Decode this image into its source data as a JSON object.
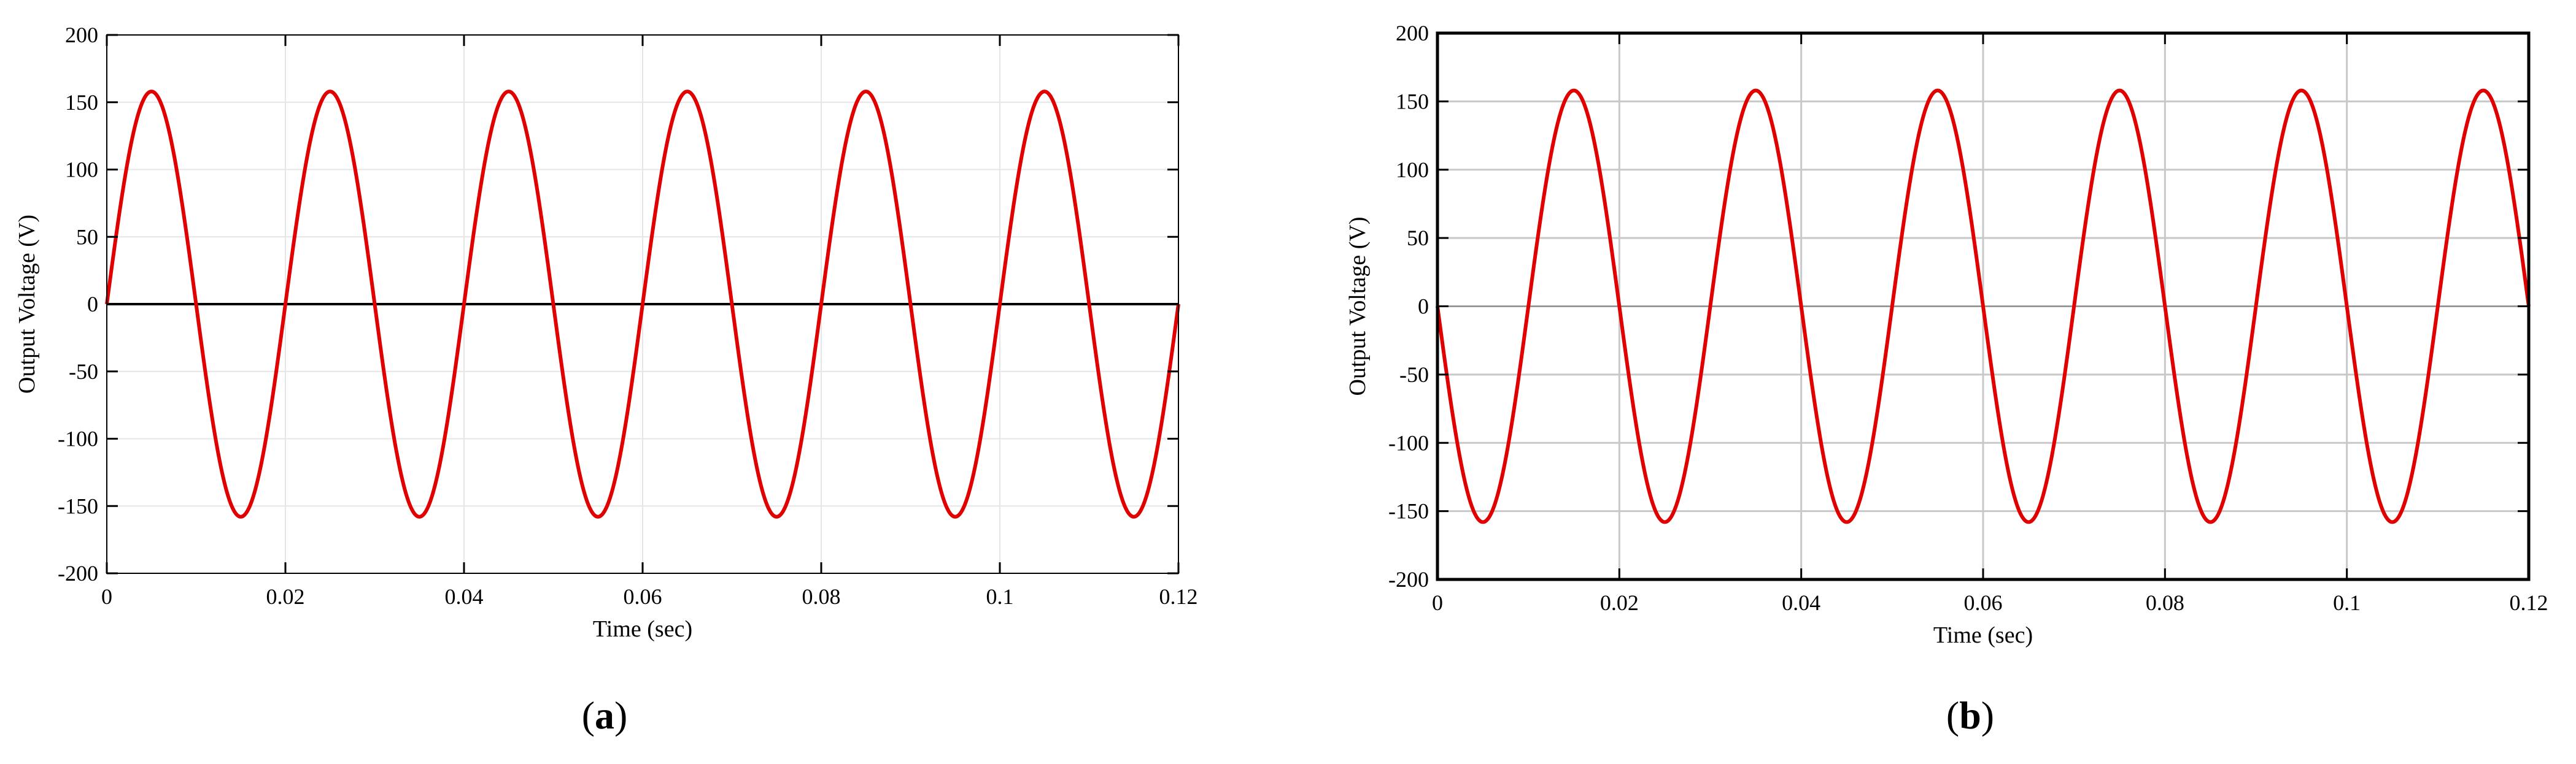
{
  "chart_data": [
    {
      "type": "line",
      "panel_label": "a",
      "xlabel": "Time (sec)",
      "ylabel": "Output Voltage (V)",
      "xlim": [
        0,
        0.12
      ],
      "ylim": [
        -200,
        200
      ],
      "xticks": [
        0,
        0.02,
        0.04,
        0.06,
        0.08,
        0.1,
        0.12
      ],
      "xtick_labels": [
        "0",
        "0.02",
        "0.04",
        "0.06",
        "0.08",
        "0.1",
        "0.12"
      ],
      "yticks": [
        200,
        150,
        100,
        50,
        0,
        -50,
        -100,
        -150,
        -200
      ],
      "ytick_labels": [
        "200",
        "150",
        "100",
        "50",
        "0",
        "-50",
        "-100",
        "-150",
        "-200"
      ],
      "grid": "light",
      "zero_line": true,
      "series": [
        {
          "color": "#e00000",
          "function": "sine",
          "amplitude": 158,
          "frequency_hz": 50,
          "phase_deg": 0,
          "x": [
            0,
            0.005,
            0.01,
            0.015,
            0.02,
            0.025,
            0.03,
            0.035,
            0.04,
            0.045,
            0.05,
            0.055,
            0.06,
            0.065,
            0.07,
            0.075,
            0.08,
            0.085,
            0.09,
            0.095,
            0.1,
            0.105,
            0.11,
            0.115,
            0.12
          ],
          "y": [
            0,
            158,
            0,
            -158,
            0,
            158,
            0,
            -158,
            0,
            158,
            0,
            -158,
            0,
            158,
            0,
            -158,
            0,
            158,
            0,
            -158,
            0,
            158,
            0,
            -158,
            0
          ]
        }
      ]
    },
    {
      "type": "line",
      "panel_label": "b",
      "xlabel": "Time (sec)",
      "ylabel": "Output Voltage (V)",
      "xlim": [
        0,
        0.12
      ],
      "ylim": [
        -200,
        200
      ],
      "xticks": [
        0,
        0.02,
        0.04,
        0.06,
        0.08,
        0.1,
        0.12
      ],
      "xtick_labels": [
        "0",
        "0.02",
        "0.04",
        "0.06",
        "0.08",
        "0.1",
        "0.12"
      ],
      "yticks": [
        200,
        150,
        100,
        50,
        0,
        -50,
        -100,
        -150,
        -200
      ],
      "ytick_labels": [
        "200",
        "150",
        "100",
        "50",
        "0",
        "-50",
        "-100",
        "-150",
        "-200"
      ],
      "grid": "dark",
      "zero_line": true,
      "series": [
        {
          "color": "#e00000",
          "function": "sine",
          "amplitude": 158,
          "frequency_hz": 50,
          "phase_deg": 180,
          "x": [
            0,
            0.005,
            0.01,
            0.015,
            0.02,
            0.025,
            0.03,
            0.035,
            0.04,
            0.045,
            0.05,
            0.055,
            0.06,
            0.065,
            0.07,
            0.075,
            0.08,
            0.085,
            0.09,
            0.095,
            0.1,
            0.105,
            0.11,
            0.115,
            0.12
          ],
          "y": [
            0,
            -158,
            0,
            158,
            0,
            -158,
            0,
            158,
            0,
            -158,
            0,
            158,
            0,
            -158,
            0,
            158,
            0,
            -158,
            0,
            158,
            0,
            -158,
            0,
            158,
            0
          ]
        }
      ]
    }
  ]
}
